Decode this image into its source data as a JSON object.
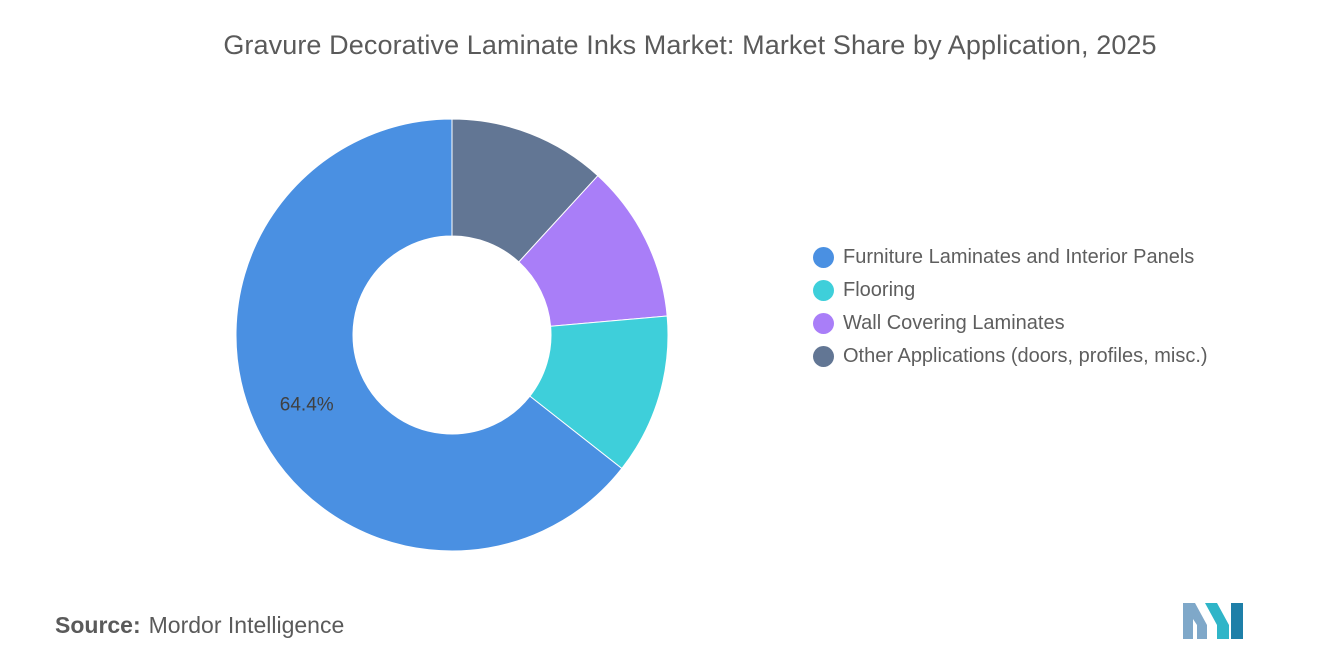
{
  "title": "Gravure Decorative Laminate Inks Market: Market Share by Application, 2025",
  "chart_data": {
    "type": "pie",
    "subtype": "donut",
    "title": "Gravure Decorative Laminate Inks Market: Market Share by Application, 2025",
    "legend_position": "right",
    "slices": [
      {
        "label": "Furniture Laminates and Interior Panels",
        "value": 64.4,
        "color": "#4a90e2",
        "data_label": "64.4%"
      },
      {
        "label": "Flooring",
        "value": 12.0,
        "color": "#3ecfda",
        "data_label": ""
      },
      {
        "label": "Wall Covering Laminates",
        "value": 11.8,
        "color": "#a97ef8",
        "data_label": ""
      },
      {
        "label": "Other Applications (doors, profiles, misc.)",
        "value": 11.8,
        "color": "#627694",
        "data_label": ""
      }
    ]
  },
  "source": {
    "label": "Source:",
    "value": "Mordor Intelligence"
  },
  "logo": {
    "colors": [
      "#7fa8c9",
      "#2fb5c8",
      "#1e7fa8"
    ]
  }
}
